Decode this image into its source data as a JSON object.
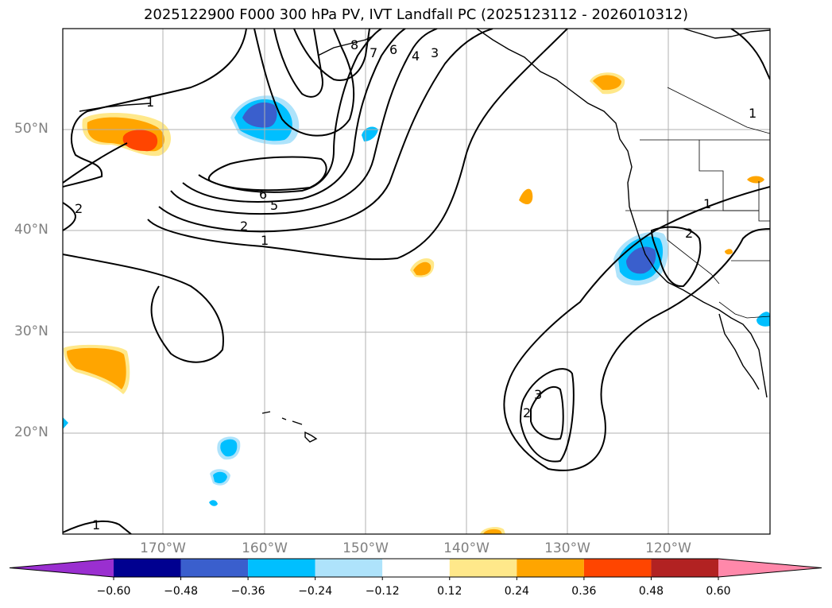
{
  "title": "2025122900 F000 300 hPa PV, IVT Landfall PC (2025123112 - 2026010312)",
  "lat_labels": [
    "50°N",
    "40°N",
    "30°N",
    "20°N"
  ],
  "lon_labels": [
    "170°W",
    "160°W",
    "150°W",
    "140°W",
    "130°W",
    "120°W"
  ],
  "colorbar": {
    "colors": [
      "#9a2fd0",
      "#000090",
      "#3a5fcd",
      "#00bfff",
      "#aee3fb",
      "#ffffff",
      "#ffe88a",
      "#ffa500",
      "#ff4500",
      "#b22222",
      "#ff88aa"
    ],
    "ticks": [
      "−0.60",
      "−0.48",
      "−0.36",
      "−0.24",
      "−0.12",
      "0.12",
      "0.24",
      "0.36",
      "0.48",
      "0.60"
    ]
  },
  "contour_labels": [
    "8",
    "7",
    "6",
    "4",
    "3",
    "1",
    "2",
    "6",
    "5",
    "2",
    "1",
    "1",
    "2",
    "2",
    "3",
    "1",
    "1"
  ]
}
